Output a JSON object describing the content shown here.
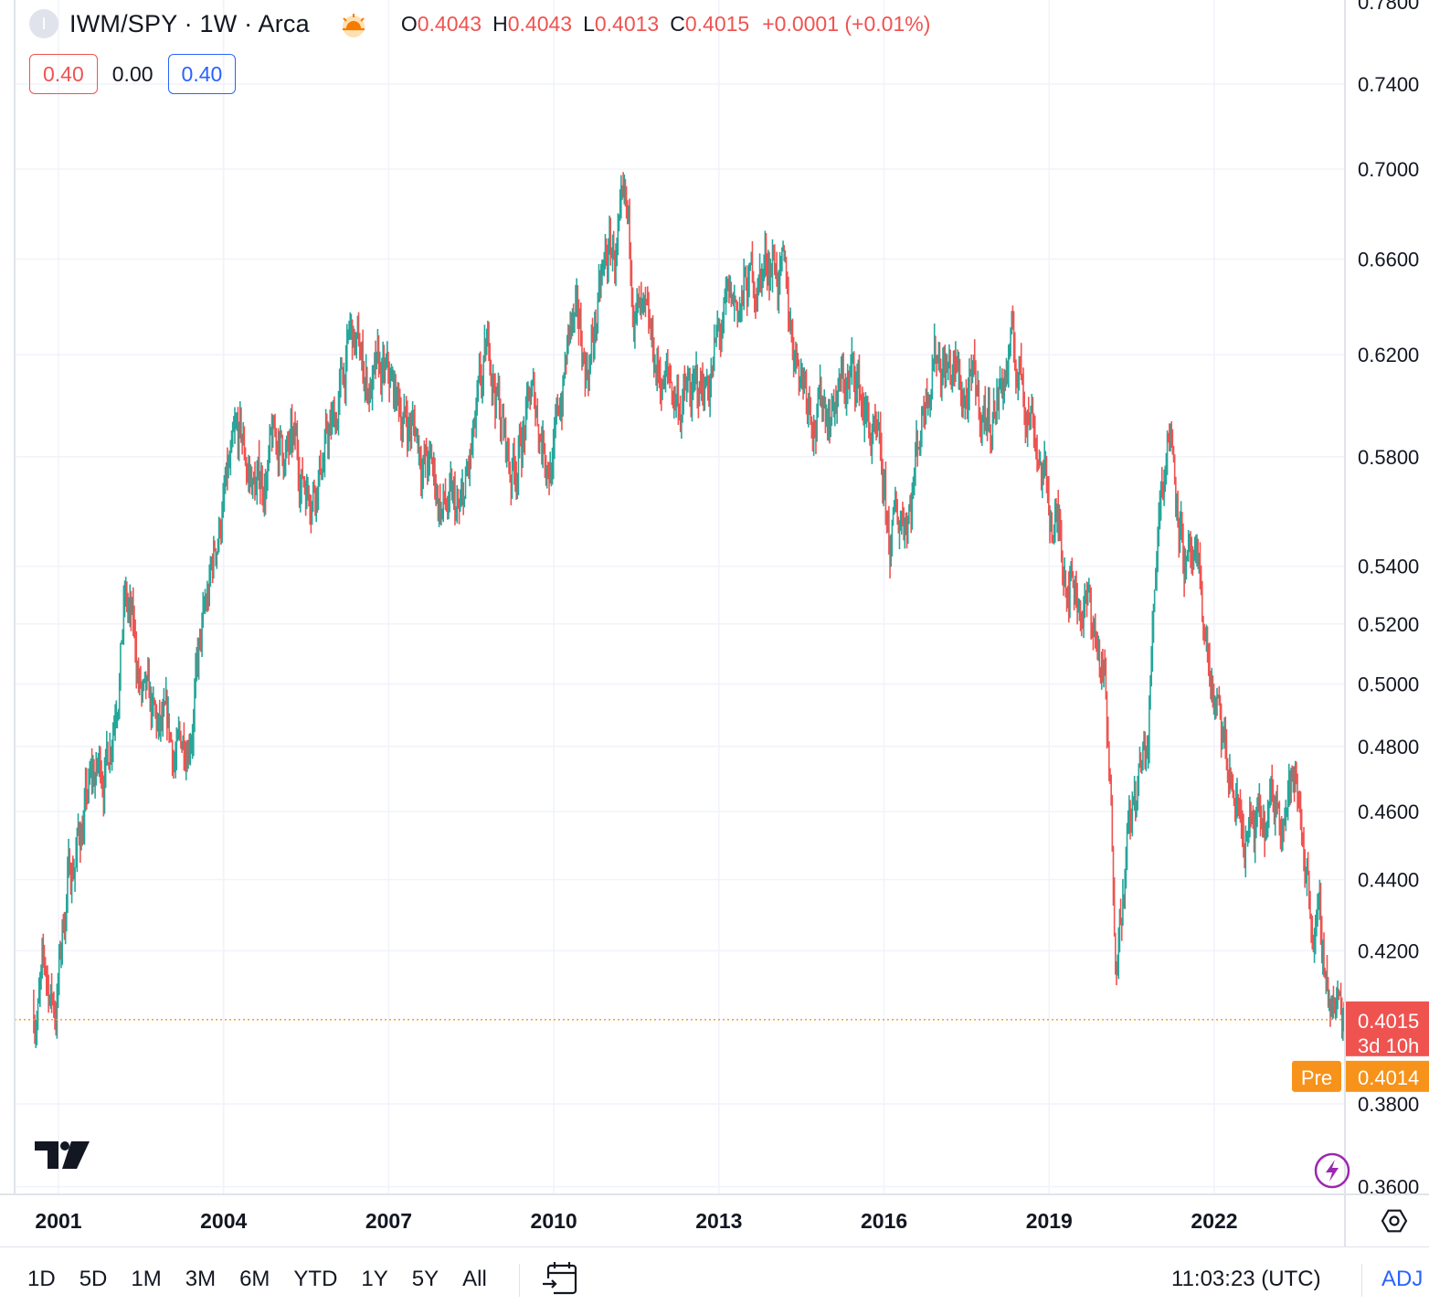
{
  "header": {
    "badge_letter": "I",
    "symbol_title": "IWM/SPY · 1W · Arca",
    "session_icon": "sunrise-icon",
    "ohlc": {
      "o_label": "O",
      "o_value": "0.4043",
      "h_label": "H",
      "h_value": "0.4043",
      "l_label": "L",
      "l_value": "0.4013",
      "c_label": "C",
      "c_value": "0.4015",
      "change": "+0.0001 (+0.01%)"
    }
  },
  "quote_buttons": {
    "sell": "0.40",
    "spread": "0.00",
    "buy": "0.40"
  },
  "price_axis": {
    "top_partial_label": "0.7800",
    "current_price_label": "0.4015",
    "countdown_label": "3d 10h",
    "pre_tag": "Pre",
    "pre_price_label": "0.4014"
  },
  "bottom_bar": {
    "ranges": [
      "1D",
      "5D",
      "1M",
      "3M",
      "6M",
      "YTD",
      "1Y",
      "5Y",
      "All"
    ],
    "calendar_icon": "goto-date-icon",
    "clock": "11:03:23 (UTC)",
    "adj": "ADJ"
  },
  "icons": {
    "logo": "tradingview-logo",
    "lightning": "lightning-icon",
    "settings": "axis-settings-icon"
  },
  "colors": {
    "up": "#26a69a",
    "down": "#ef5350",
    "pre": "#f7931a",
    "accent": "#2962ff",
    "grid": "#f0f3fa"
  },
  "chart_data": {
    "type": "candlestick",
    "title": "IWM/SPY · 1W · Arca",
    "scale": "log",
    "ylim": [
      0.36,
      0.78
    ],
    "y_ticks": [
      "0.3600",
      "0.3800",
      "0.4200",
      "0.4400",
      "0.4600",
      "0.4800",
      "0.5000",
      "0.5200",
      "0.5400",
      "0.5800",
      "0.6200",
      "0.6600",
      "0.7000",
      "0.7400"
    ],
    "x_tick_labels": [
      "2001",
      "2004",
      "2007",
      "2010",
      "2013",
      "2016",
      "2019",
      "2022"
    ],
    "x_tick_years": [
      2001,
      2004,
      2007,
      2010,
      2013,
      2016,
      2019,
      2022
    ],
    "xlim": [
      2000.4,
      2024.45
    ],
    "current_price": 0.4015,
    "pre_market_price": 0.4014,
    "approx_path": {
      "t": [
        2000.55,
        2000.75,
        2000.95,
        2001.15,
        2001.5,
        2001.9,
        2002.2,
        2002.3,
        2002.55,
        2002.8,
        2003.2,
        2003.7,
        2003.95,
        2004.3,
        2004.6,
        2005.0,
        2005.5,
        2006.0,
        2006.3,
        2006.6,
        2007.0,
        2007.5,
        2007.9,
        2008.3,
        2008.7,
        2008.85,
        2009.2,
        2009.6,
        2010.0,
        2010.3,
        2010.6,
        2011.0,
        2011.3,
        2011.7,
        2012.2,
        2012.6,
        2013.0,
        2013.5,
        2014.0,
        2014.3,
        2014.8,
        2015.5,
        2015.8,
        2016.1,
        2016.5,
        2016.9,
        2017.4,
        2017.9,
        2018.3,
        2018.7,
        2019.0,
        2019.4,
        2019.8,
        2020.0,
        2020.2,
        2020.4,
        2020.8,
        2021.0,
        2021.2,
        2021.5,
        2021.8,
        2022.1,
        2022.5,
        2022.9,
        2023.2,
        2023.4,
        2023.6,
        2023.8,
        2024.0,
        2024.2,
        2024.35
      ],
      "close": [
        0.405,
        0.412,
        0.405,
        0.438,
        0.462,
        0.478,
        0.53,
        0.52,
        0.49,
        0.48,
        0.475,
        0.522,
        0.56,
        0.58,
        0.567,
        0.585,
        0.572,
        0.59,
        0.625,
        0.61,
        0.603,
        0.59,
        0.565,
        0.552,
        0.6,
        0.62,
        0.575,
        0.6,
        0.58,
        0.63,
        0.615,
        0.66,
        0.665,
        0.615,
        0.605,
        0.6,
        0.625,
        0.645,
        0.665,
        0.63,
        0.6,
        0.61,
        0.585,
        0.545,
        0.57,
        0.63,
        0.605,
        0.595,
        0.62,
        0.6,
        0.56,
        0.54,
        0.52,
        0.5,
        0.425,
        0.45,
        0.48,
        0.57,
        0.595,
        0.54,
        0.52,
        0.48,
        0.455,
        0.45,
        0.465,
        0.47,
        0.455,
        0.43,
        0.415,
        0.405,
        0.4015
      ]
    }
  }
}
